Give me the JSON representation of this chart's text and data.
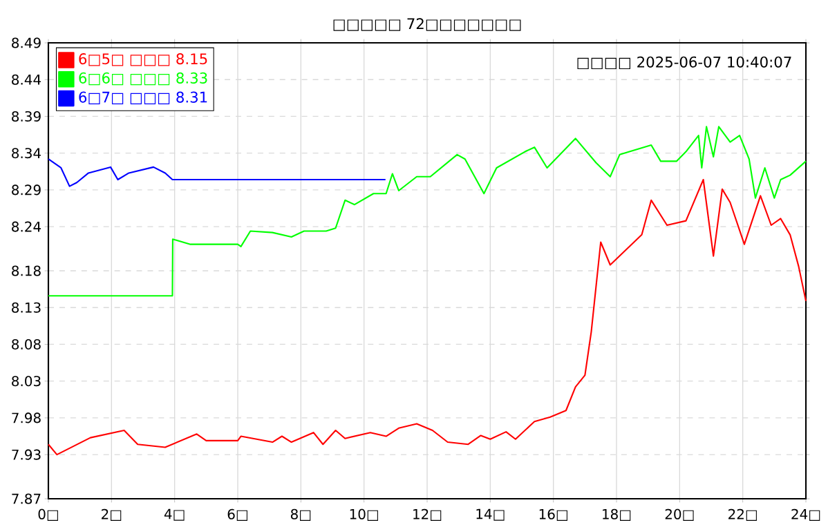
{
  "chart_data": {
    "type": "line",
    "title": "□□□□□ 72□□□□□□□",
    "annotations": [
      "□□□□ 2025-06-07 10:40:07"
    ],
    "xlim": [
      0,
      24
    ],
    "ylim": [
      7.87,
      8.49
    ],
    "xticks": [
      {
        "value": 0,
        "label": "0□"
      },
      {
        "value": 2,
        "label": "2□"
      },
      {
        "value": 4,
        "label": "4□"
      },
      {
        "value": 6,
        "label": "6□"
      },
      {
        "value": 8,
        "label": "8□"
      },
      {
        "value": 10,
        "label": "10□"
      },
      {
        "value": 12,
        "label": "12□"
      },
      {
        "value": 14,
        "label": "14□"
      },
      {
        "value": 16,
        "label": "16□"
      },
      {
        "value": 18,
        "label": "18□"
      },
      {
        "value": 20,
        "label": "20□"
      },
      {
        "value": 22,
        "label": "22□"
      },
      {
        "value": 24,
        "label": "24□"
      }
    ],
    "yticks": [
      7.87,
      7.93,
      7.98,
      8.03,
      8.08,
      8.13,
      8.18,
      8.24,
      8.29,
      8.34,
      8.39,
      8.44,
      8.49
    ],
    "grid": true,
    "legend": "top left",
    "line_style": "solid",
    "series": [
      {
        "name": "6□5□ □□□ 8.15",
        "color": "#ff0000",
        "x": [
          0,
          0.27,
          1.33,
          2.4,
          2.83,
          3.7,
          4.7,
          5.0,
          6.0,
          6.1,
          7.1,
          7.4,
          7.7,
          8.4,
          8.7,
          9.1,
          9.4,
          10.2,
          10.7,
          11.1,
          11.67,
          12.17,
          12.65,
          13.3,
          13.7,
          14.0,
          14.5,
          14.8,
          15.4,
          15.9,
          16.4,
          16.7,
          17.0,
          17.2,
          17.5,
          17.8,
          18.8,
          19.1,
          19.6,
          20.2,
          20.75,
          21.07,
          21.35,
          21.6,
          22.05,
          22.56,
          22.9,
          23.2,
          23.5,
          23.77,
          24
        ],
        "values": [
          7.944,
          7.93,
          7.953,
          7.963,
          7.944,
          7.94,
          7.958,
          7.949,
          7.949,
          7.955,
          7.947,
          7.955,
          7.947,
          7.96,
          7.944,
          7.963,
          7.952,
          7.96,
          7.955,
          7.966,
          7.972,
          7.963,
          7.947,
          7.944,
          7.956,
          7.951,
          7.961,
          7.951,
          7.975,
          7.981,
          7.99,
          8.022,
          8.038,
          8.097,
          8.219,
          8.188,
          8.229,
          8.276,
          8.242,
          8.248,
          8.304,
          8.2,
          8.291,
          8.273,
          8.216,
          8.282,
          8.242,
          8.251,
          8.229,
          8.186,
          8.139
        ]
      },
      {
        "name": "6□6□ □□□ 8.33",
        "color": "#00ff00",
        "x": [
          0,
          3.93,
          3.94,
          4.5,
          6.0,
          6.1,
          6.4,
          7.1,
          7.7,
          8.1,
          8.8,
          9.1,
          9.4,
          9.7,
          10.3,
          10.7,
          10.9,
          11.1,
          11.67,
          12.1,
          12.95,
          13.2,
          13.8,
          14.2,
          15.1,
          15.4,
          15.8,
          16.7,
          17.35,
          17.8,
          18.1,
          19.1,
          19.4,
          19.9,
          20.2,
          20.6,
          20.7,
          20.85,
          21.07,
          21.24,
          21.6,
          21.9,
          22.2,
          22.4,
          22.7,
          23.0,
          23.2,
          23.5,
          24
        ],
        "values": [
          8.146,
          8.146,
          8.223,
          8.216,
          8.216,
          8.213,
          8.234,
          8.232,
          8.226,
          8.234,
          8.234,
          8.238,
          8.276,
          8.27,
          8.285,
          8.285,
          8.312,
          8.289,
          8.308,
          8.308,
          8.338,
          8.332,
          8.285,
          8.32,
          8.342,
          8.348,
          8.32,
          8.36,
          8.327,
          8.308,
          8.338,
          8.351,
          8.329,
          8.329,
          8.342,
          8.364,
          8.32,
          8.376,
          8.335,
          8.376,
          8.355,
          8.364,
          8.332,
          8.279,
          8.32,
          8.279,
          8.304,
          8.31,
          8.329
        ]
      },
      {
        "name": "6□7□ □□□ 8.31",
        "color": "#0000ff",
        "x": [
          0,
          0.4,
          0.67,
          0.9,
          1.27,
          1.97,
          2.2,
          2.55,
          3.33,
          3.7,
          3.93,
          10.68
        ],
        "values": [
          8.332,
          8.32,
          8.295,
          8.3,
          8.313,
          8.321,
          8.304,
          8.313,
          8.321,
          8.313,
          8.304,
          8.304
        ]
      }
    ]
  }
}
